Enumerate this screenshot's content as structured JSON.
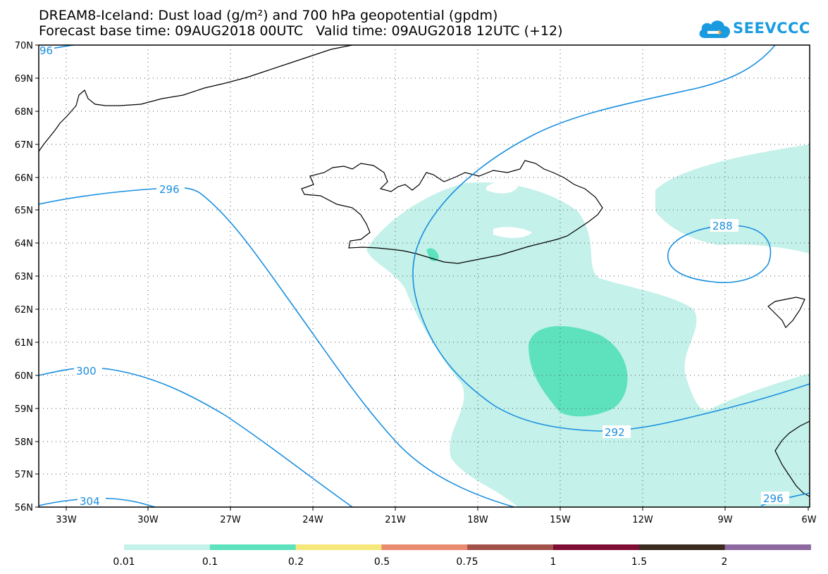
{
  "header": {
    "title_line1": "DREAM8-Iceland: Dust load (g/m²) and 700 hPa geopotential (gpdm)",
    "title_line2": "Forecast base time: 09AUG2018 00UTC   Valid time: 09AUG2018 12UTC (+12)"
  },
  "logo": {
    "text": "SEEVCCC",
    "color": "#1a9be0"
  },
  "map": {
    "lat_labels": [
      "70N",
      "69N",
      "68N",
      "67N",
      "66N",
      "65N",
      "64N",
      "63N",
      "62N",
      "61N",
      "60N",
      "59N",
      "58N",
      "57N",
      "56N"
    ],
    "lon_labels": [
      "33W",
      "30W",
      "27W",
      "24W",
      "21W",
      "18W",
      "15W",
      "12W",
      "9W",
      "6W"
    ],
    "contour_labels": [
      "96",
      "296",
      "300",
      "304",
      "288",
      "292",
      "296"
    ],
    "contour_color": "#1a8fe0",
    "coast_color": "#000000"
  },
  "legend": {
    "labels": [
      "0.01",
      "0.1",
      "0.2",
      "0.5",
      "0.75",
      "1",
      "1.5",
      "2"
    ],
    "colors": [
      "#c4f1ea",
      "#5ee2bd",
      "#f6e77a",
      "#e98b6e",
      "#a3514b",
      "#7f0e34",
      "#3b2a1e",
      "#8d69a0"
    ]
  }
}
